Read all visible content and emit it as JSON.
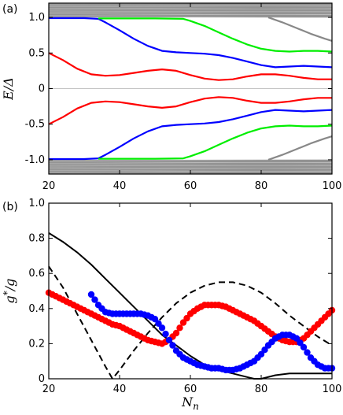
{
  "chart_data": [
    {
      "type": "line",
      "panel_label": "(a)",
      "xlabel": "",
      "ylabel": "E/Δ",
      "xlim": [
        20,
        100
      ],
      "ylim": [
        -1.2,
        1.2
      ],
      "x_ticks": [
        "20",
        "40",
        "60",
        "80",
        "100"
      ],
      "y_ticks": [
        "1.0",
        "0.5",
        "0",
        "-0.5",
        "-1.0"
      ],
      "y_tick_values": [
        1.0,
        0.5,
        0,
        -0.5,
        -1.0
      ],
      "grid": false,
      "continuum_band": {
        "color": "#808080",
        "upper": [
          1.0,
          1.2
        ],
        "lower": [
          -1.2,
          -1.0
        ]
      },
      "reference_line": {
        "y": 0,
        "color": "#b0b0b0"
      },
      "series": [
        {
          "color": "#ff0000",
          "x": [
            20,
            24,
            28,
            32,
            36,
            40,
            44,
            48,
            52,
            56,
            60,
            64,
            68,
            72,
            76,
            80,
            84,
            88,
            92,
            96,
            100
          ],
          "y": [
            0.5,
            0.4,
            0.28,
            0.2,
            0.18,
            0.19,
            0.22,
            0.25,
            0.27,
            0.25,
            0.19,
            0.14,
            0.12,
            0.13,
            0.17,
            0.2,
            0.2,
            0.18,
            0.15,
            0.13,
            0.13
          ]
        },
        {
          "color": "#ff0000",
          "x": [
            20,
            24,
            28,
            32,
            36,
            40,
            44,
            48,
            52,
            56,
            60,
            64,
            68,
            72,
            76,
            80,
            84,
            88,
            92,
            96,
            100
          ],
          "y": [
            -0.5,
            -0.4,
            -0.28,
            -0.2,
            -0.18,
            -0.19,
            -0.22,
            -0.25,
            -0.27,
            -0.25,
            -0.19,
            -0.14,
            -0.12,
            -0.13,
            -0.17,
            -0.2,
            -0.2,
            -0.18,
            -0.15,
            -0.13,
            -0.13
          ]
        },
        {
          "color": "#0000ff",
          "x": [
            20,
            30,
            34,
            36,
            40,
            44,
            48,
            52,
            56,
            60,
            64,
            68,
            72,
            76,
            80,
            84,
            88,
            92,
            96,
            100
          ],
          "y": [
            0.99,
            0.99,
            0.98,
            0.93,
            0.82,
            0.7,
            0.6,
            0.53,
            0.51,
            0.5,
            0.49,
            0.47,
            0.43,
            0.38,
            0.33,
            0.3,
            0.31,
            0.32,
            0.31,
            0.3
          ]
        },
        {
          "color": "#0000ff",
          "x": [
            20,
            30,
            34,
            36,
            40,
            44,
            48,
            52,
            56,
            60,
            64,
            68,
            72,
            76,
            80,
            84,
            88,
            92,
            96,
            100
          ],
          "y": [
            -0.99,
            -0.99,
            -0.98,
            -0.93,
            -0.82,
            -0.7,
            -0.6,
            -0.53,
            -0.51,
            -0.5,
            -0.49,
            -0.47,
            -0.43,
            -0.38,
            -0.33,
            -0.3,
            -0.31,
            -0.32,
            -0.31,
            -0.3
          ]
        },
        {
          "color": "#00ee00",
          "x": [
            34,
            50,
            58,
            60,
            64,
            68,
            72,
            76,
            80,
            84,
            88,
            92,
            96,
            100
          ],
          "y": [
            0.985,
            0.985,
            0.98,
            0.95,
            0.88,
            0.79,
            0.7,
            0.62,
            0.56,
            0.53,
            0.52,
            0.53,
            0.53,
            0.52
          ]
        },
        {
          "color": "#00ee00",
          "x": [
            34,
            50,
            58,
            60,
            64,
            68,
            72,
            76,
            80,
            84,
            88,
            92,
            96,
            100
          ],
          "y": [
            -0.985,
            -0.985,
            -0.98,
            -0.95,
            -0.88,
            -0.79,
            -0.7,
            -0.62,
            -0.56,
            -0.53,
            -0.52,
            -0.53,
            -0.53,
            -0.52
          ]
        },
        {
          "color": "#888888",
          "x": [
            82,
            86,
            90,
            94,
            98,
            100
          ],
          "y": [
            1.0,
            0.93,
            0.85,
            0.77,
            0.7,
            0.67
          ]
        },
        {
          "color": "#888888",
          "x": [
            82,
            86,
            90,
            94,
            98,
            100
          ],
          "y": [
            -1.0,
            -0.93,
            -0.85,
            -0.77,
            -0.7,
            -0.67
          ]
        }
      ]
    },
    {
      "type": "scatter",
      "panel_label": "(b)",
      "xlabel": "N_n",
      "ylabel": "g*/g",
      "xlim": [
        20,
        100
      ],
      "ylim": [
        0,
        1.0
      ],
      "x_ticks": [
        "20",
        "40",
        "60",
        "80",
        "100"
      ],
      "x_tick_values": [
        20,
        40,
        60,
        80,
        100
      ],
      "y_ticks": [
        "0",
        "0.2",
        "0.4",
        "0.6",
        "0.8",
        "1.0"
      ],
      "y_tick_values": [
        0,
        0.2,
        0.4,
        0.6,
        0.8,
        1.0
      ],
      "grid": false,
      "lines": [
        {
          "style": "solid",
          "color": "#000000",
          "x": [
            20,
            24,
            28,
            32,
            36,
            40,
            44,
            48,
            52,
            56,
            60,
            64,
            68,
            72,
            76,
            78,
            80,
            84,
            88,
            92,
            96,
            100
          ],
          "y": [
            0.83,
            0.78,
            0.72,
            0.65,
            0.57,
            0.49,
            0.41,
            0.33,
            0.25,
            0.19,
            0.13,
            0.08,
            0.05,
            0.03,
            0.01,
            0.0,
            0.0,
            0.02,
            0.03,
            0.03,
            0.03,
            0.03
          ]
        },
        {
          "style": "dashed",
          "color": "#000000",
          "x": [
            20,
            24,
            28,
            32,
            36,
            38,
            40,
            44,
            48,
            52,
            56,
            60,
            64,
            68,
            72,
            76,
            80,
            84,
            88,
            92,
            96,
            100
          ],
          "y": [
            0.64,
            0.52,
            0.37,
            0.22,
            0.07,
            0.0,
            0.05,
            0.16,
            0.26,
            0.35,
            0.43,
            0.49,
            0.53,
            0.55,
            0.55,
            0.53,
            0.49,
            0.43,
            0.36,
            0.3,
            0.24,
            0.19
          ]
        }
      ],
      "series": [
        {
          "color": "#ff0000",
          "x": [
            20,
            22,
            24,
            26,
            28,
            30,
            32,
            34,
            36,
            38,
            40,
            42,
            44,
            46,
            48,
            50,
            52,
            54,
            56,
            58,
            60,
            62,
            64,
            66,
            68,
            70,
            72,
            74,
            76,
            78,
            80,
            82,
            84,
            86,
            88,
            90,
            92,
            94,
            96,
            98,
            100
          ],
          "y": [
            0.49,
            0.47,
            0.45,
            0.43,
            0.41,
            0.39,
            0.37,
            0.35,
            0.33,
            0.31,
            0.3,
            0.28,
            0.26,
            0.24,
            0.22,
            0.21,
            0.2,
            0.22,
            0.26,
            0.32,
            0.37,
            0.4,
            0.42,
            0.42,
            0.42,
            0.41,
            0.39,
            0.37,
            0.35,
            0.33,
            0.3,
            0.27,
            0.24,
            0.22,
            0.21,
            0.21,
            0.23,
            0.27,
            0.31,
            0.35,
            0.39
          ]
        },
        {
          "color": "#0000ff",
          "x": [
            32,
            34,
            36,
            38,
            40,
            42,
            44,
            46,
            48,
            50,
            52,
            54,
            56,
            58,
            60,
            62,
            64,
            66,
            68,
            70,
            72,
            74,
            76,
            78,
            80,
            82,
            84,
            86,
            88,
            90,
            92,
            94,
            96,
            98,
            100
          ],
          "y": [
            0.48,
            0.42,
            0.38,
            0.37,
            0.37,
            0.37,
            0.37,
            0.37,
            0.36,
            0.34,
            0.29,
            0.22,
            0.16,
            0.12,
            0.1,
            0.08,
            0.07,
            0.06,
            0.06,
            0.05,
            0.05,
            0.06,
            0.08,
            0.1,
            0.14,
            0.19,
            0.23,
            0.25,
            0.25,
            0.23,
            0.18,
            0.12,
            0.08,
            0.06,
            0.06
          ]
        }
      ]
    }
  ]
}
